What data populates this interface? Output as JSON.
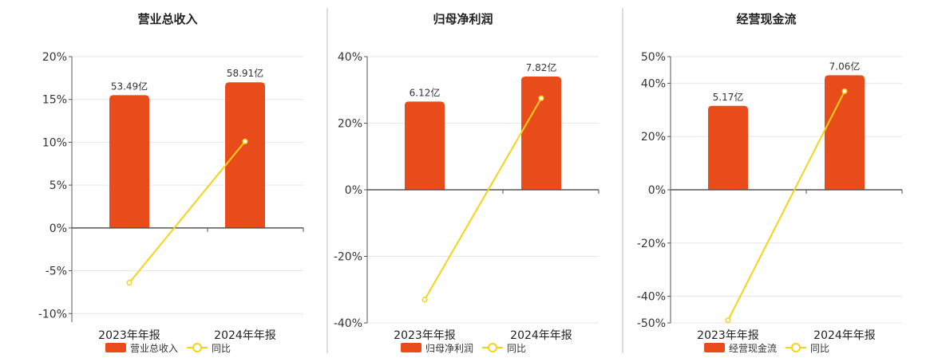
{
  "legend": {
    "line_label": "同比"
  },
  "colors": {
    "bar": "#e84c1b",
    "line": "#f5d319",
    "axis": "#555555",
    "grid": "#e6e6e6",
    "divider": "#bbbbbb"
  },
  "chart_data": [
    {
      "type": "bar",
      "title": "营业总收入",
      "categories": [
        "2023年年报",
        "2024年年报"
      ],
      "series": [
        {
          "name": "营业总收入",
          "kind": "bar",
          "values": [
            15.5,
            17.0
          ],
          "labels": [
            "53.49亿",
            "58.91亿"
          ]
        },
        {
          "name": "同比",
          "kind": "line",
          "values": [
            -6.4,
            10.1
          ]
        }
      ],
      "ylim": [
        -11,
        20
      ],
      "yticks": [
        20,
        15,
        10,
        5,
        0,
        -5,
        -10
      ],
      "ytick_labels": [
        "20%",
        "15%",
        "10%",
        "5%",
        "0%",
        "-5%",
        "-10%"
      ],
      "grid": true
    },
    {
      "type": "bar",
      "title": "归母净利润",
      "categories": [
        "2023年年报",
        "2024年年报"
      ],
      "series": [
        {
          "name": "归母净利润",
          "kind": "bar",
          "values": [
            26.5,
            34.0
          ],
          "labels": [
            "6.12亿",
            "7.82亿"
          ]
        },
        {
          "name": "同比",
          "kind": "line",
          "values": [
            -33.0,
            27.5
          ]
        }
      ],
      "ylim": [
        -40,
        40
      ],
      "yticks": [
        40,
        20,
        0,
        -20,
        -40
      ],
      "ytick_labels": [
        "40%",
        "20%",
        "0%",
        "-20%",
        "-40%"
      ],
      "grid": true
    },
    {
      "type": "bar",
      "title": "经营现金流",
      "categories": [
        "2023年年报",
        "2024年年报"
      ],
      "series": [
        {
          "name": "经营现金流",
          "kind": "bar",
          "values": [
            31.5,
            43.0
          ],
          "labels": [
            "5.17亿",
            "7.06亿"
          ]
        },
        {
          "name": "同比",
          "kind": "line",
          "values": [
            -49.0,
            37.0
          ]
        }
      ],
      "ylim": [
        -50,
        50
      ],
      "yticks": [
        50,
        40,
        20,
        0,
        -20,
        -40,
        -50
      ],
      "ytick_labels": [
        "50%",
        "40%",
        "20%",
        "0%",
        "-20%",
        "-40%",
        "-50%"
      ],
      "grid": true
    }
  ]
}
